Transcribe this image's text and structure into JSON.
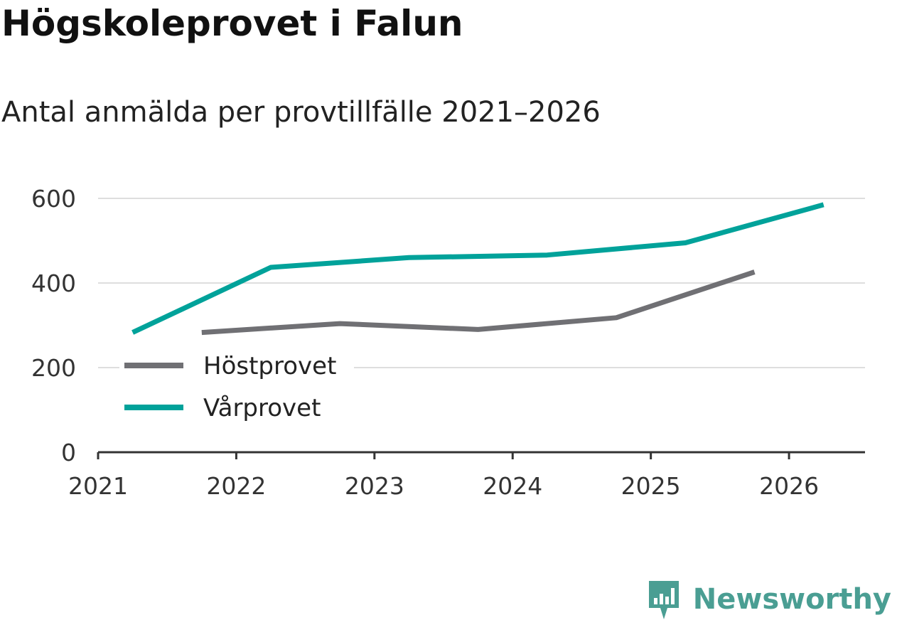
{
  "header": {
    "title": "Högskoleprovet i Falun",
    "subtitle": "Antal anmälda per provtillfälle 2021–2026"
  },
  "brand": {
    "name": "Newsworthy",
    "icon": "bar-chart-bubble-icon",
    "color": "#4a9e93"
  },
  "chart_data": {
    "type": "line",
    "title": "Högskoleprovet i Falun",
    "subtitle": "Antal anmälda per provtillfälle 2021–2026",
    "xlabel": "",
    "ylabel": "",
    "xlim": [
      2021,
      2026.55
    ],
    "ylim": [
      0,
      600
    ],
    "y_ticks": [
      0,
      200,
      400,
      600
    ],
    "x_ticks": [
      2021,
      2022,
      2023,
      2024,
      2025,
      2026
    ],
    "y_tick_labels": [
      "0",
      "200",
      "400",
      "600"
    ],
    "x_tick_labels": [
      "2021",
      "2022",
      "2023",
      "2024",
      "2025",
      "2026"
    ],
    "grid": true,
    "legend_position": "middle-left",
    "series": [
      {
        "name": "Höstprovet",
        "color": "#707074",
        "x": [
          2021.75,
          2022.75,
          2023.75,
          2024.75,
          2025.75
        ],
        "values": [
          283,
          304,
          290,
          318,
          426
        ]
      },
      {
        "name": "Vårprovet",
        "color": "#00a29a",
        "x": [
          2021.25,
          2022.25,
          2023.25,
          2024.25,
          2025.25,
          2026.25
        ],
        "values": [
          283,
          437,
          460,
          466,
          495,
          585
        ]
      }
    ]
  }
}
